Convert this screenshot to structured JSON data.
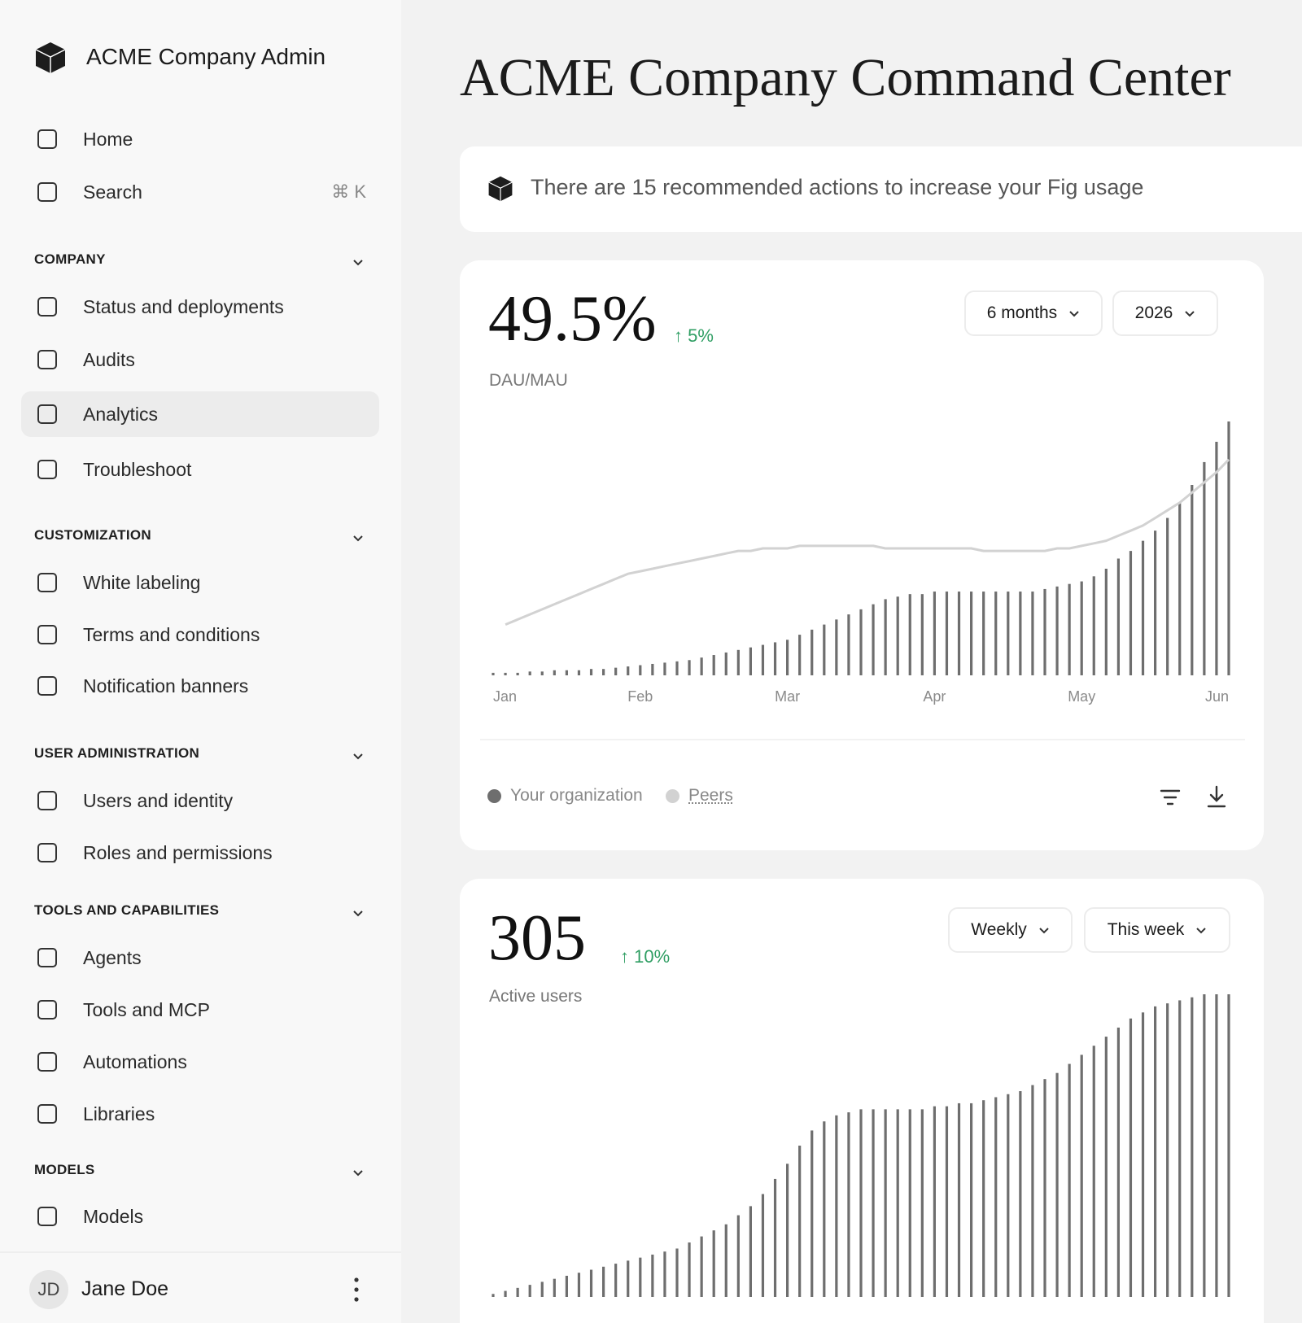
{
  "sidebar": {
    "brand": "ACME Company Admin",
    "top": [
      {
        "label": "Home"
      },
      {
        "label": "Search",
        "shortcut": "⌘ K"
      }
    ],
    "sections": [
      {
        "title": "COMPANY",
        "items": [
          "Status and deployments",
          "Audits",
          "Analytics",
          "Troubleshoot"
        ]
      },
      {
        "title": "CUSTOMIZATION",
        "items": [
          "White labeling",
          "Terms and conditions",
          "Notification banners"
        ]
      },
      {
        "title": "USER ADMINISTRATION",
        "items": [
          "Users and identity",
          "Roles and permissions"
        ]
      },
      {
        "title": "TOOLS AND CAPABILITIES",
        "items": [
          "Agents",
          "Tools and MCP",
          "Automations",
          "Libraries"
        ]
      },
      {
        "title": "MODELS",
        "items": [
          "Models"
        ]
      }
    ],
    "user": {
      "initials": "JD",
      "name": "Jane Doe"
    }
  },
  "header": {
    "title": "ACME Company Command Center"
  },
  "banner": {
    "text": "There are 15 recommended actions to increase your Fig usage"
  },
  "cards": [
    {
      "metric": "49.5%",
      "change": "↑ 5%",
      "label": "DAU/MAU",
      "controls": [
        "6 months",
        "2026"
      ]
    },
    {
      "metric": "305",
      "change": "↑ 10%",
      "label": "Active users",
      "controls": [
        "Weekly",
        "This week"
      ]
    }
  ],
  "chart_data": [
    {
      "type": "bar",
      "categories": [
        "Jan",
        null,
        null,
        null,
        null,
        null,
        null,
        null,
        null,
        null,
        null,
        null,
        "Feb",
        null,
        null,
        null,
        null,
        null,
        null,
        null,
        null,
        null,
        null,
        null,
        "Mar",
        null,
        null,
        null,
        null,
        null,
        null,
        null,
        null,
        null,
        null,
        null,
        "Apr",
        null,
        null,
        null,
        null,
        null,
        null,
        null,
        null,
        null,
        null,
        null,
        "May",
        null,
        null,
        null,
        null,
        null,
        null,
        null,
        null,
        null,
        null,
        null,
        "Jun"
      ],
      "series": [
        {
          "name": "Your organization",
          "color": "#6e6e6e",
          "values": [
            1,
            1,
            1,
            1.5,
            1.5,
            2,
            2,
            2,
            2.5,
            2.5,
            3,
            3.5,
            4,
            4.5,
            5,
            5.5,
            6,
            7,
            8,
            9,
            10,
            11,
            12,
            13,
            14,
            16,
            18,
            20,
            22,
            24,
            26,
            28,
            30,
            31,
            32,
            32,
            33,
            33,
            33,
            33,
            33,
            33,
            33,
            33,
            33,
            34,
            35,
            36,
            37,
            39,
            42,
            46,
            49,
            53,
            57,
            62,
            68,
            75,
            84,
            92,
            100
          ]
        },
        {
          "name": "Peers",
          "color": "#d2d2d2",
          "type": "line",
          "values": [
            null,
            20,
            22,
            24,
            26,
            28,
            30,
            32,
            34,
            36,
            38,
            40,
            41,
            42,
            43,
            44,
            45,
            46,
            47,
            48,
            49,
            49,
            50,
            50,
            50,
            51,
            51,
            51,
            51,
            51,
            51,
            51,
            50,
            50,
            50,
            50,
            50,
            50,
            50,
            50,
            49,
            49,
            49,
            49,
            49,
            49,
            50,
            50,
            51,
            52,
            53,
            55,
            57,
            59,
            62,
            65,
            68,
            72,
            76,
            80,
            85
          ]
        }
      ]
    },
    {
      "type": "bar",
      "color": "#6e6e6e",
      "values": [
        1,
        2,
        3,
        4,
        5,
        6,
        7,
        8,
        9,
        10,
        11,
        12,
        13,
        14,
        15,
        16,
        18,
        20,
        22,
        24,
        27,
        30,
        34,
        39,
        44,
        50,
        55,
        58,
        60,
        61,
        62,
        62,
        62,
        62,
        62,
        62,
        63,
        63,
        64,
        64,
        65,
        66,
        67,
        68,
        70,
        72,
        74,
        77,
        80,
        83,
        86,
        89,
        92,
        94,
        96,
        97,
        98,
        99,
        100,
        100,
        100
      ]
    }
  ]
}
